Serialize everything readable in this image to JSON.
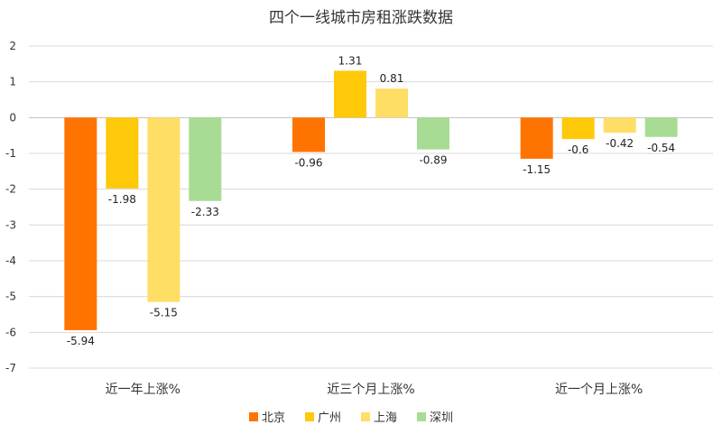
{
  "chart_data": {
    "type": "bar",
    "title": "四个一线城市房租涨跌数据",
    "xlabel": "",
    "ylabel": "",
    "categories": [
      "近一年上涨%",
      "近三个月上涨%",
      "近一个月上涨%"
    ],
    "series": [
      {
        "name": "北京",
        "color": "#FF7400",
        "values": [
          -5.94,
          -0.96,
          -1.15
        ]
      },
      {
        "name": "广州",
        "color": "#FFC90A",
        "values": [
          -1.98,
          1.31,
          -0.6
        ]
      },
      {
        "name": "上海",
        "color": "#FFDE66",
        "values": [
          -5.15,
          0.81,
          -0.42
        ]
      },
      {
        "name": "深圳",
        "color": "#A8DC95",
        "values": [
          -2.33,
          -0.89,
          -0.54
        ]
      }
    ],
    "ylim": [
      -7,
      2
    ],
    "yticks": [
      2,
      1,
      0,
      -1,
      -2,
      -3,
      -4,
      -5,
      -6,
      -7
    ],
    "grid": true,
    "legend_position": "bottom"
  }
}
